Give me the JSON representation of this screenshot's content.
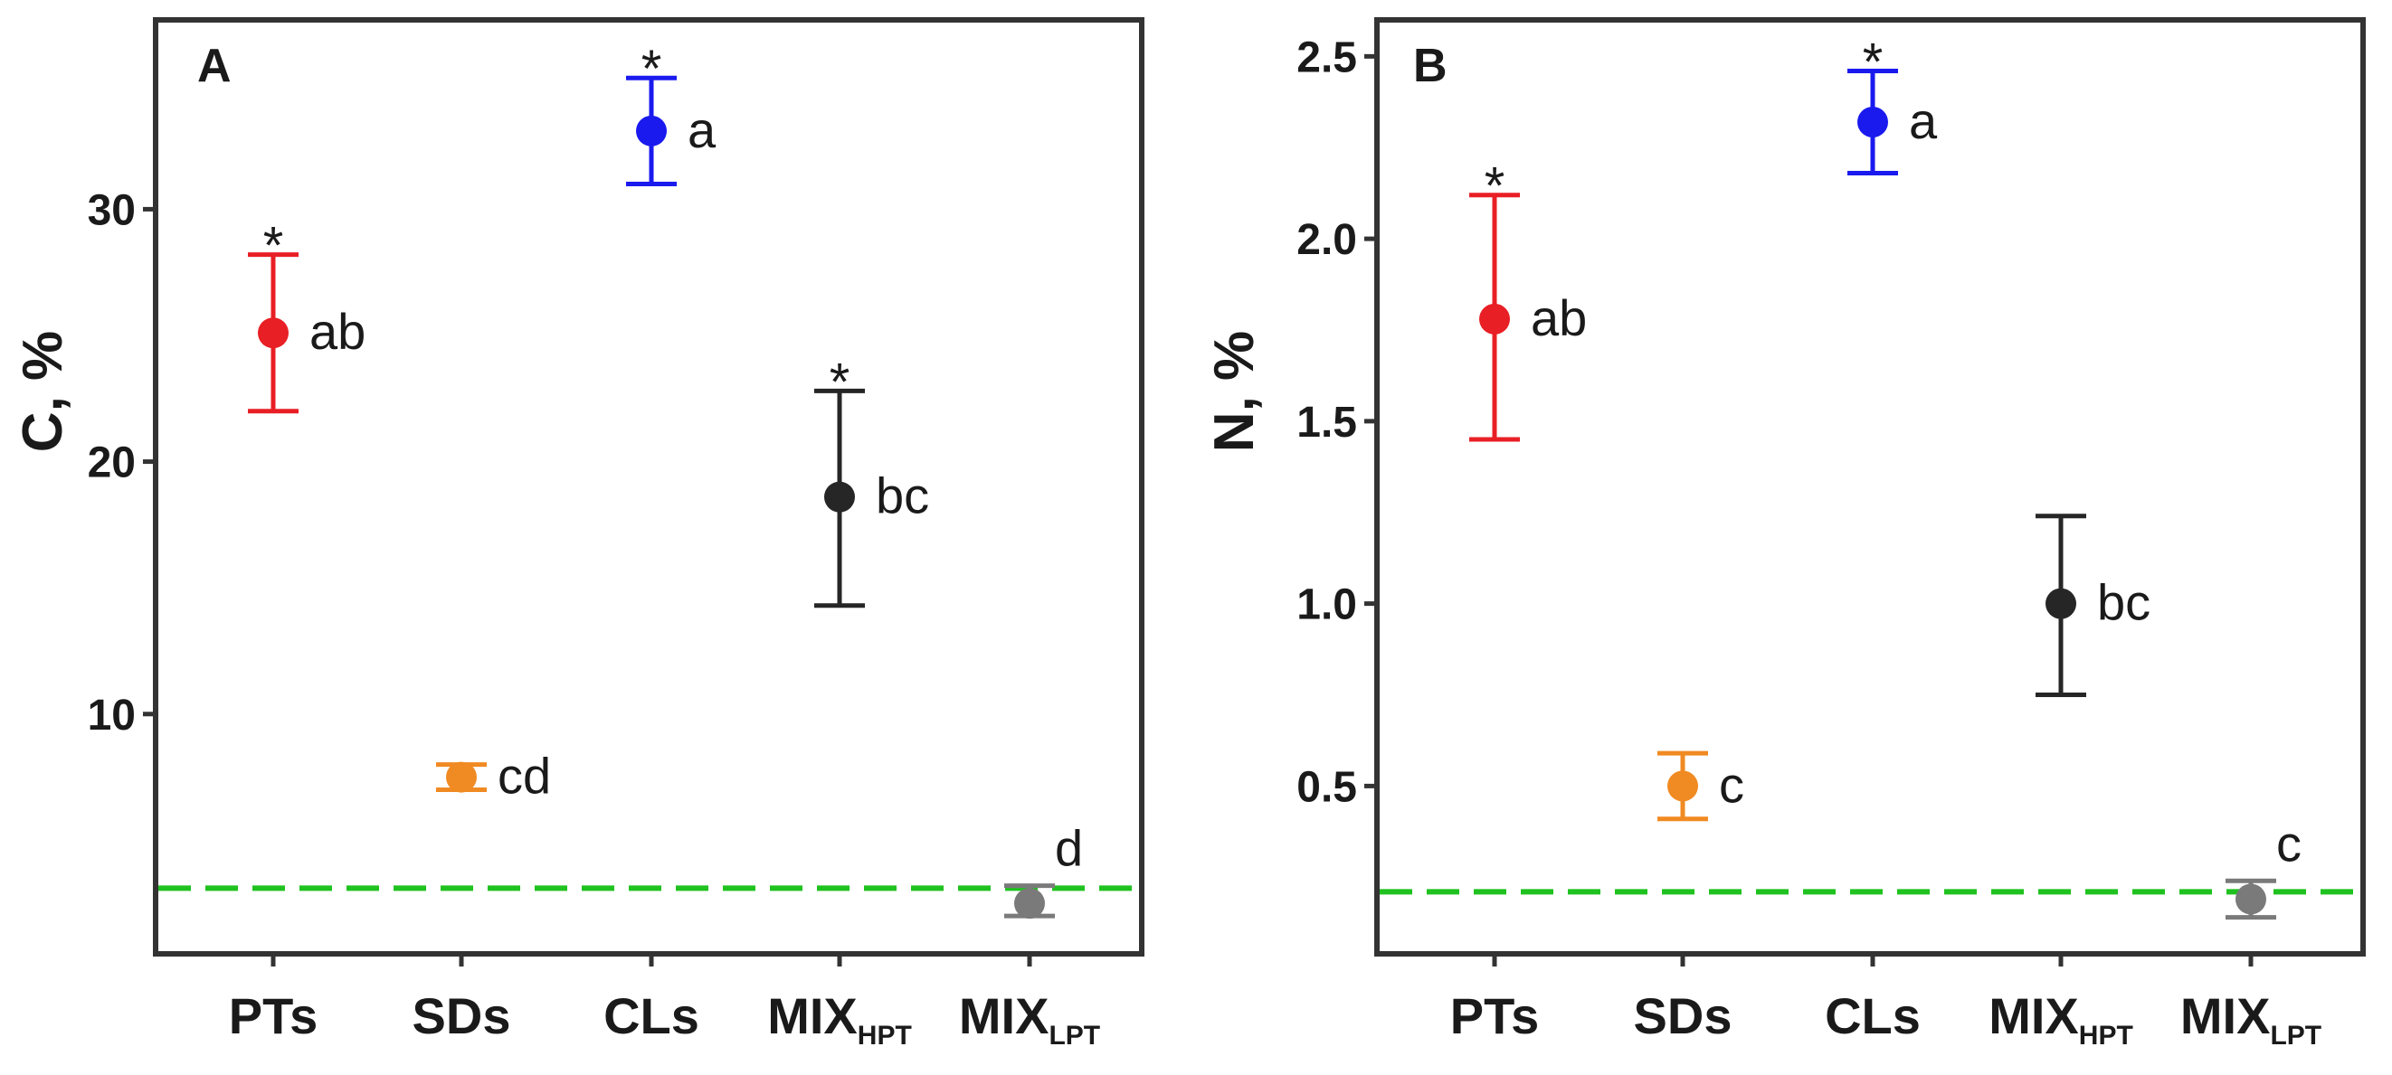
{
  "chart_data": [
    {
      "type": "scatter",
      "panel_label": "A",
      "ylabel": "C, %",
      "categories": [
        {
          "main": "PTs",
          "sub": ""
        },
        {
          "main": "SDs",
          "sub": ""
        },
        {
          "main": "CLs",
          "sub": ""
        },
        {
          "main": "MIX",
          "sub": "HPT"
        },
        {
          "main": "MIX",
          "sub": "LPT"
        }
      ],
      "ylim": [
        0.5,
        37.5
      ],
      "yticks": [
        10,
        20,
        30
      ],
      "ytick_labels": [
        "10",
        "20",
        "30"
      ],
      "reference_line": 3.1,
      "points": [
        {
          "mean": 25.1,
          "lower": 22.0,
          "upper": 28.2,
          "color": "#e81f25",
          "letter": "ab",
          "star": "*",
          "marker": "circle"
        },
        {
          "mean": 7.5,
          "lower": 7.0,
          "upper": 8.0,
          "color": "#f08a22",
          "letter": "cd",
          "star": "",
          "marker": "circle"
        },
        {
          "mean": 33.1,
          "lower": 31.0,
          "upper": 35.2,
          "color": "#1a1aef",
          "letter": "a",
          "star": "*",
          "marker": "circle"
        },
        {
          "mean": 18.6,
          "lower": 14.3,
          "upper": 22.8,
          "color": "#262626",
          "letter": "bc",
          "star": "*",
          "marker": "circle"
        },
        {
          "mean": 2.5,
          "lower": 2.0,
          "upper": 3.2,
          "color": "#7a7a7a",
          "letter": "d",
          "star": "",
          "marker": "circle"
        }
      ]
    },
    {
      "type": "scatter",
      "panel_label": "B",
      "ylabel": "N, %",
      "categories": [
        {
          "main": "PTs",
          "sub": ""
        },
        {
          "main": "SDs",
          "sub": ""
        },
        {
          "main": "CLs",
          "sub": ""
        },
        {
          "main": "MIX",
          "sub": "HPT"
        },
        {
          "main": "MIX",
          "sub": "LPT"
        }
      ],
      "ylim": [
        0.04,
        2.6
      ],
      "yticks": [
        0.5,
        1.0,
        1.5,
        2.0,
        2.5
      ],
      "ytick_labels": [
        "0.5",
        "1.0",
        "1.5",
        "2.0",
        "2.5"
      ],
      "reference_line": 0.21,
      "points": [
        {
          "mean": 1.78,
          "lower": 1.45,
          "upper": 2.12,
          "color": "#e81f25",
          "letter": "ab",
          "star": "*",
          "marker": "circle"
        },
        {
          "mean": 0.5,
          "lower": 0.41,
          "upper": 0.59,
          "color": "#f08a22",
          "letter": "c",
          "star": "",
          "marker": "circle"
        },
        {
          "mean": 2.32,
          "lower": 2.18,
          "upper": 2.46,
          "color": "#1a1aef",
          "letter": "a",
          "star": "*",
          "marker": "circle"
        },
        {
          "mean": 1.0,
          "lower": 0.75,
          "upper": 1.24,
          "color": "#262626",
          "letter": "bc",
          "star": "",
          "marker": "circle"
        },
        {
          "mean": 0.19,
          "lower": 0.14,
          "upper": 0.24,
          "color": "#7a7a7a",
          "letter": "c",
          "star": "",
          "marker": "circle"
        }
      ]
    }
  ],
  "colors": {
    "axis": "#333333",
    "reference_line": "#1fc21f"
  }
}
